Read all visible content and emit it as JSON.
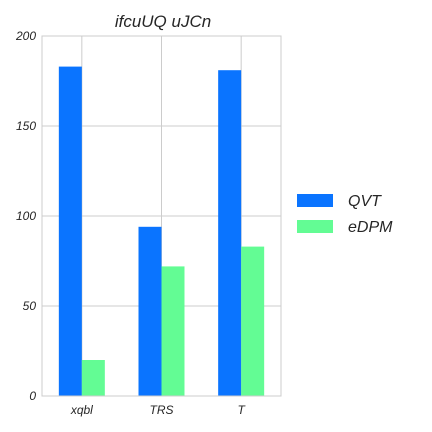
{
  "chart_data": {
    "type": "bar",
    "title": "ifcuUQ uJCn",
    "xlabel": "",
    "ylabel": "",
    "categories": [
      "xqbl",
      "TRS",
      "T"
    ],
    "series": [
      {
        "name": "QVT",
        "color": "#0a74ff",
        "values": [
          183,
          94,
          181
        ]
      },
      {
        "name": "eDPM",
        "color": "#63fc94",
        "values": [
          20,
          72,
          83
        ]
      }
    ],
    "ylim": [
      0,
      200
    ],
    "yticks": [
      0,
      50,
      100,
      150,
      200
    ],
    "grid": true,
    "legend_position": "right"
  }
}
